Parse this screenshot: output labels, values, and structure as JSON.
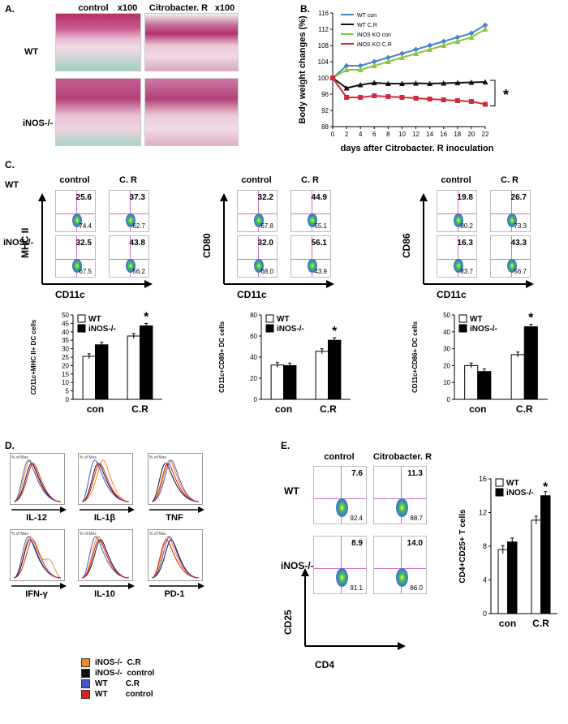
{
  "panel_a": {
    "label": "A.",
    "col_headers": [
      "control",
      "x100",
      "Citrobacter. R",
      "x100"
    ],
    "row_labels": [
      "WT",
      "iNOS-/-"
    ]
  },
  "panel_b": {
    "label": "B.",
    "star": "*"
  },
  "panel_c": {
    "label": "C.",
    "row_labels": [
      "WT",
      "iNOS-/-"
    ],
    "col_headers": [
      "control",
      "C. R"
    ],
    "groups": [
      {
        "yaxis": "MHC II",
        "xaxis": "CD11c",
        "values": [
          [
            "25.6",
            "74.4"
          ],
          [
            "37.3",
            "62.7"
          ],
          [
            "32.5",
            "67.5"
          ],
          [
            "43.8",
            "56.2"
          ]
        ]
      },
      {
        "yaxis": "CD80",
        "xaxis": "CD11c",
        "values": [
          [
            "32.2",
            "67.8"
          ],
          [
            "44.9",
            "55.1"
          ],
          [
            "32.0",
            "68.0"
          ],
          [
            "56.1",
            "43.9"
          ]
        ]
      },
      {
        "yaxis": "CD86",
        "xaxis": "CD11c",
        "values": [
          [
            "19.8",
            "80.2"
          ],
          [
            "26.7",
            "73.3"
          ],
          [
            "16.3",
            "83.7"
          ],
          [
            "43.3",
            "56.7"
          ]
        ]
      }
    ]
  },
  "panel_d": {
    "label": "D.",
    "ytick": "% of Max",
    "markers": [
      "IL-12",
      "IL-1β",
      "TNF",
      "IFN-γ",
      "IL-10",
      "PD-1"
    ],
    "legend": [
      {
        "label": "iNOS-/-  C.R",
        "color": "#f08a24"
      },
      {
        "label": "iNOS-/-  control",
        "color": "#111111"
      },
      {
        "label": "WT        C.R",
        "color": "#4a55c8"
      },
      {
        "label": "WT        control",
        "color": "#e02020"
      }
    ]
  },
  "panel_e": {
    "label": "E.",
    "col_headers": [
      "control",
      "Citrobacter. R"
    ],
    "row_labels": [
      "WT",
      "iNOS-/-"
    ],
    "yaxis": "CD25",
    "xaxis": "CD4",
    "values": [
      [
        "7.6",
        "92.4"
      ],
      [
        "11.3",
        "88.7"
      ],
      [
        "8.9",
        "91.1"
      ],
      [
        "14.0",
        "86.0"
      ]
    ]
  },
  "chart_data": [
    {
      "type": "line",
      "title": "",
      "xlabel": "days after Citrobacter. R inoculation",
      "ylabel": "Body weight changes (%)",
      "x": [
        0,
        2,
        4,
        6,
        8,
        10,
        12,
        14,
        16,
        18,
        20,
        22
      ],
      "xlim": [
        0,
        22
      ],
      "ylim": [
        88,
        116
      ],
      "yticks": [
        88,
        92,
        96,
        100,
        104,
        108,
        112,
        116
      ],
      "series": [
        {
          "name": "WT con",
          "color": "#4a86c8",
          "marker": "diamond",
          "values": [
            100,
            103,
            103,
            104,
            105,
            106,
            107,
            108,
            109,
            110,
            111,
            113
          ]
        },
        {
          "name": "WT C.R",
          "color": "#111111",
          "marker": "triangle",
          "values": [
            100,
            97.5,
            98.3,
            98.8,
            98.6,
            98.6,
            98.7,
            98.6,
            98.7,
            98.8,
            98.9,
            99
          ]
        },
        {
          "name": "iNOS KO con",
          "color": "#8cc63f",
          "marker": "triangle",
          "values": [
            100,
            102,
            102,
            103,
            104,
            105,
            106,
            107,
            108,
            109,
            110,
            112
          ]
        },
        {
          "name": "iNOS KO C.R",
          "color": "#d22a3c",
          "marker": "square",
          "values": [
            100,
            95.2,
            95.2,
            95.6,
            95.4,
            95.2,
            95,
            94.8,
            94.6,
            94.4,
            94.2,
            93.5
          ]
        }
      ]
    },
    {
      "type": "bar",
      "ylabel": "CD11c+MHC II+ DC cells",
      "categories": [
        "con",
        "C.R"
      ],
      "ylim": [
        0,
        50
      ],
      "yticks": [
        0,
        5,
        10,
        15,
        20,
        25,
        30,
        35,
        40,
        45,
        50
      ],
      "star": "*",
      "series": [
        {
          "name": "WT",
          "color": "#ffffff",
          "values": [
            25.5,
            37.5
          ]
        },
        {
          "name": "iNOS-/-",
          "color": "#000000",
          "values": [
            32.3,
            43.5
          ]
        }
      ]
    },
    {
      "type": "bar",
      "ylabel": "CD11c+CD80+ DC cells",
      "categories": [
        "con",
        "C.R"
      ],
      "ylim": [
        0,
        80
      ],
      "yticks": [
        0,
        20,
        40,
        60,
        80
      ],
      "star": "*",
      "series": [
        {
          "name": "WT",
          "color": "#ffffff",
          "values": [
            32.5,
            45.5
          ]
        },
        {
          "name": "iNOS-/-",
          "color": "#000000",
          "values": [
            32,
            56
          ]
        }
      ]
    },
    {
      "type": "bar",
      "ylabel": "CD11c+CD86+ DC cells",
      "categories": [
        "con",
        "C.R"
      ],
      "ylim": [
        0,
        50
      ],
      "yticks": [
        0,
        10,
        20,
        30,
        40,
        50
      ],
      "star": "*",
      "series": [
        {
          "name": "WT",
          "color": "#ffffff",
          "values": [
            20,
            26.5
          ]
        },
        {
          "name": "iNOS-/-",
          "color": "#000000",
          "values": [
            16.5,
            43
          ]
        }
      ]
    },
    {
      "type": "bar",
      "ylabel": "CD4+CD25+ T cells",
      "categories": [
        "con",
        "C.R"
      ],
      "ylim": [
        0,
        16
      ],
      "yticks": [
        0,
        4,
        8,
        12,
        16
      ],
      "star": "*",
      "series": [
        {
          "name": "WT",
          "color": "#ffffff",
          "values": [
            7.6,
            11.1
          ]
        },
        {
          "name": "iNOS-/-",
          "color": "#000000",
          "values": [
            8.5,
            14
          ]
        }
      ]
    }
  ]
}
